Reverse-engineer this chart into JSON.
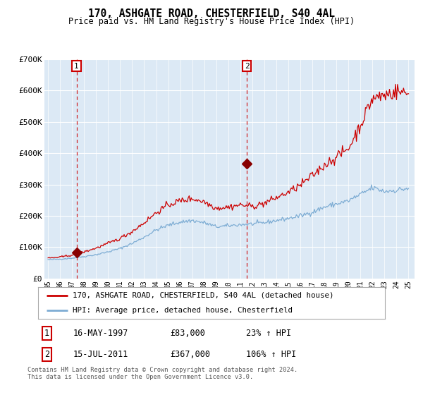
{
  "title": "170, ASHGATE ROAD, CHESTERFIELD, S40 4AL",
  "subtitle": "Price paid vs. HM Land Registry's House Price Index (HPI)",
  "ylim": [
    0,
    700000
  ],
  "yticks": [
    0,
    100000,
    200000,
    300000,
    400000,
    500000,
    600000,
    700000
  ],
  "ytick_labels": [
    "£0",
    "£100K",
    "£200K",
    "£300K",
    "£400K",
    "£500K",
    "£600K",
    "£700K"
  ],
  "sale1_date_num": 1997.37,
  "sale1_price": 83000,
  "sale1_label": "16-MAY-1997",
  "sale1_amount": "£83,000",
  "sale1_hpi": "23% ↑ HPI",
  "sale2_date_num": 2011.54,
  "sale2_price": 367000,
  "sale2_label": "15-JUL-2011",
  "sale2_amount": "£367,000",
  "sale2_hpi": "106% ↑ HPI",
  "line1_color": "#cc0000",
  "line2_color": "#7eadd4",
  "marker_color": "#880000",
  "dashed_color": "#cc0000",
  "plot_bg": "#dce9f5",
  "grid_color": "#ffffff",
  "legend_label1": "170, ASHGATE ROAD, CHESTERFIELD, S40 4AL (detached house)",
  "legend_label2": "HPI: Average price, detached house, Chesterfield",
  "footnote": "Contains HM Land Registry data © Crown copyright and database right 2024.\nThis data is licensed under the Open Government Licence v3.0.",
  "xlim_start": 1994.7,
  "xlim_end": 2025.5
}
